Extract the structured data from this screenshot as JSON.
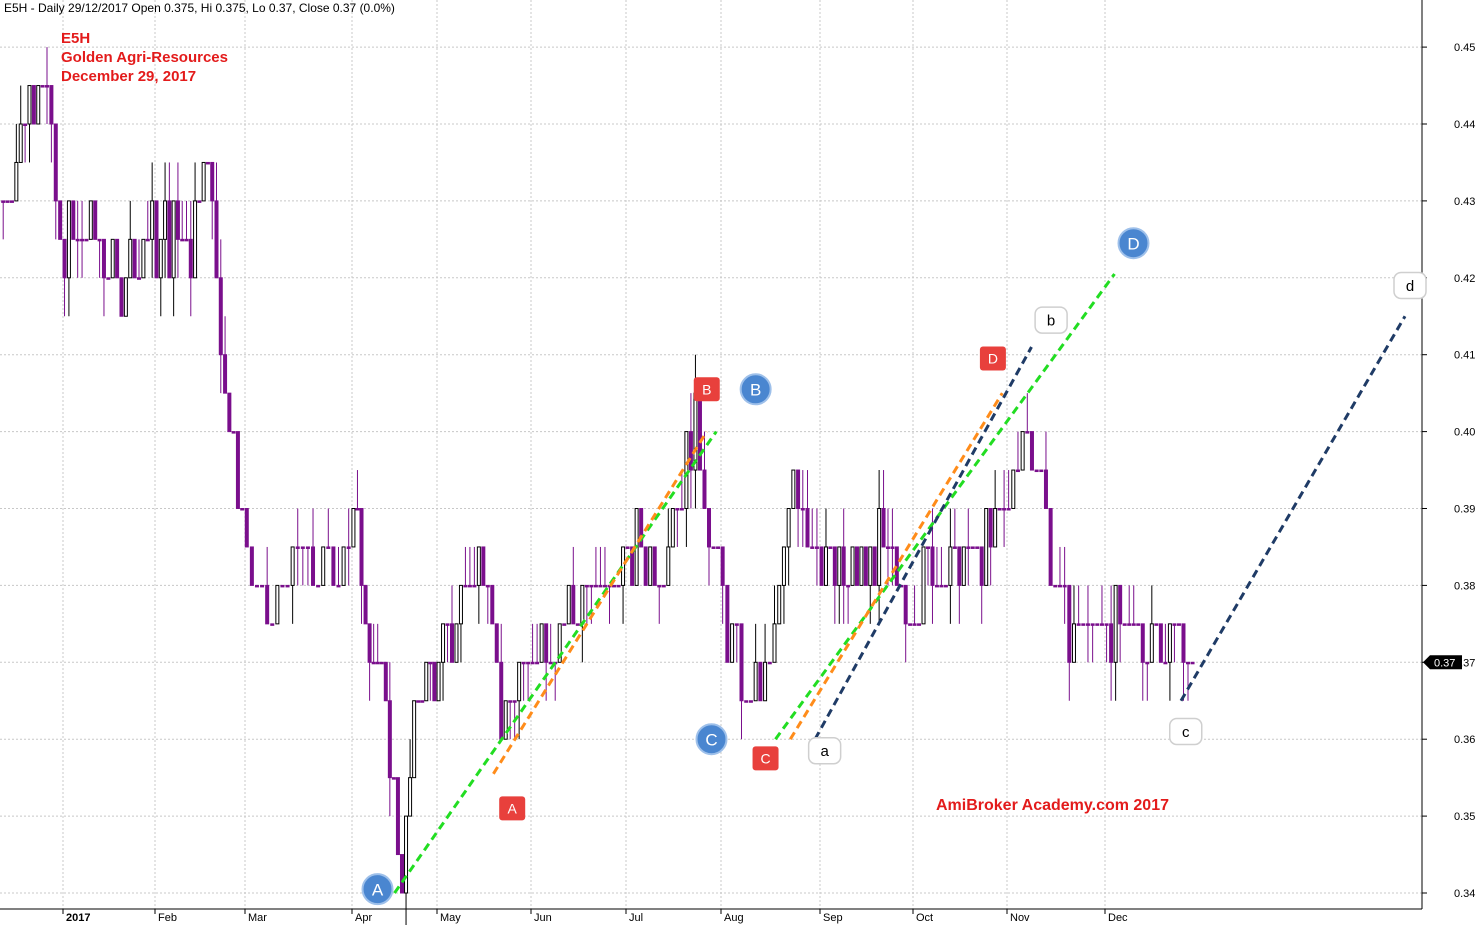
{
  "header": {
    "info": "E5H - Daily 29/12/2017 Open 0.375, Hi 0.375, Lo 0.37, Close 0.37 (0.0%)"
  },
  "title_block": {
    "symbol": "E5H",
    "company": "Golden Agri-Resources",
    "date": "December 29, 2017"
  },
  "watermark": "AmiBroker Academy.com  2017",
  "colors": {
    "down_bar": "#7a0f8c",
    "up_bar": "#000000",
    "grid": "#c8c8c8",
    "green_line": "#22dd22",
    "orange_line": "#ff8c1a",
    "navy_line": "#1f3b66",
    "red_marker": "#e8403c",
    "blue_marker": "#4a86d0",
    "text_red": "#e31b1b"
  },
  "chart_data": {
    "type": "candlestick",
    "title": "E5H",
    "y_tick_labels": [
      "0.34",
      "0.35",
      "0.36",
      "0.37",
      "0.38",
      "0.39",
      "0.40",
      "0.41",
      "0.42",
      "0.43",
      "0.44",
      "0.45"
    ],
    "x_tick_labels": [
      "2017",
      "Feb",
      "Mar",
      "Apr",
      "May",
      "Jun",
      "Jul",
      "Aug",
      "Sep",
      "Oct",
      "Nov",
      "Dec"
    ],
    "ylim": [
      0.3375,
      0.4575
    ],
    "grid": true,
    "last_price_label": "0.37",
    "last_price": 0.37,
    "month_index": [
      0,
      1,
      2,
      3,
      4,
      5,
      6,
      7,
      8,
      9,
      10,
      11,
      12,
      13,
      14
    ],
    "price_keyframes": [
      {
        "m": -0.65,
        "p": 0.43
      },
      {
        "m": -0.2,
        "p": 0.45
      },
      {
        "m": -0.05,
        "p": 0.425
      },
      {
        "m": 0.3,
        "p": 0.425
      },
      {
        "m": 0.6,
        "p": 0.42
      },
      {
        "m": 1.0,
        "p": 0.425
      },
      {
        "m": 1.4,
        "p": 0.425
      },
      {
        "m": 1.55,
        "p": 0.44
      },
      {
        "m": 1.68,
        "p": 0.42
      },
      {
        "m": 1.85,
        "p": 0.4
      },
      {
        "m": 2.0,
        "p": 0.385
      },
      {
        "m": 2.2,
        "p": 0.375
      },
      {
        "m": 2.5,
        "p": 0.385
      },
      {
        "m": 2.8,
        "p": 0.38
      },
      {
        "m": 3.0,
        "p": 0.39
      },
      {
        "m": 3.2,
        "p": 0.375
      },
      {
        "m": 3.45,
        "p": 0.36
      },
      {
        "m": 3.6,
        "p": 0.342
      },
      {
        "m": 3.75,
        "p": 0.365
      },
      {
        "m": 4.0,
        "p": 0.37
      },
      {
        "m": 4.2,
        "p": 0.375
      },
      {
        "m": 4.35,
        "p": 0.38
      },
      {
        "m": 4.55,
        "p": 0.385
      },
      {
        "m": 4.7,
        "p": 0.36
      },
      {
        "m": 4.95,
        "p": 0.37
      },
      {
        "m": 5.2,
        "p": 0.375
      },
      {
        "m": 5.5,
        "p": 0.378
      },
      {
        "m": 5.8,
        "p": 0.38
      },
      {
        "m": 6.1,
        "p": 0.385
      },
      {
        "m": 6.4,
        "p": 0.385
      },
      {
        "m": 6.6,
        "p": 0.395
      },
      {
        "m": 6.75,
        "p": 0.4
      },
      {
        "m": 6.9,
        "p": 0.385
      },
      {
        "m": 7.05,
        "p": 0.375
      },
      {
        "m": 7.25,
        "p": 0.365
      },
      {
        "m": 7.5,
        "p": 0.37
      },
      {
        "m": 7.75,
        "p": 0.395
      },
      {
        "m": 8.0,
        "p": 0.385
      },
      {
        "m": 8.3,
        "p": 0.38
      },
      {
        "m": 8.6,
        "p": 0.385
      },
      {
        "m": 8.9,
        "p": 0.378
      },
      {
        "m": 9.2,
        "p": 0.382
      },
      {
        "m": 9.5,
        "p": 0.383
      },
      {
        "m": 9.8,
        "p": 0.385
      },
      {
        "m": 10.0,
        "p": 0.39
      },
      {
        "m": 10.2,
        "p": 0.4
      },
      {
        "m": 10.35,
        "p": 0.395
      },
      {
        "m": 10.45,
        "p": 0.38
      },
      {
        "m": 10.7,
        "p": 0.375
      },
      {
        "m": 11.0,
        "p": 0.375
      },
      {
        "m": 11.3,
        "p": 0.372
      },
      {
        "m": 11.6,
        "p": 0.375
      },
      {
        "m": 11.8,
        "p": 0.372
      },
      {
        "m": 11.95,
        "p": 0.37
      }
    ],
    "trend_lines": [
      {
        "color": "green",
        "dash": "dashed",
        "from": {
          "m": 3.5,
          "p": 0.34
        },
        "to": {
          "m": 6.95,
          "p": 0.4
        }
      },
      {
        "color": "orange",
        "dash": "dashed",
        "from": {
          "m": 4.6,
          "p": 0.3555
        },
        "to": {
          "m": 6.85,
          "p": 0.4
        }
      },
      {
        "color": "green",
        "dash": "dashed",
        "from": {
          "m": 7.55,
          "p": 0.36
        },
        "to": {
          "m": 11.1,
          "p": 0.4205
        }
      },
      {
        "color": "orange",
        "dash": "dashed",
        "from": {
          "m": 7.7,
          "p": 0.36
        },
        "to": {
          "m": 9.95,
          "p": 0.405
        }
      },
      {
        "color": "navy",
        "dash": "dashed",
        "from": {
          "m": 7.95,
          "p": 0.36
        },
        "to": {
          "m": 10.25,
          "p": 0.411
        }
      },
      {
        "color": "navy",
        "dash": "dashed",
        "from": {
          "m": 11.8,
          "p": 0.365
        },
        "to": {
          "m": 14.05,
          "p": 0.415
        }
      }
    ],
    "markers": [
      {
        "label": "A",
        "style": "red",
        "m": 4.8,
        "p": 0.351
      },
      {
        "label": "A",
        "style": "blue",
        "m": 3.3,
        "p": 0.3405
      },
      {
        "label": "B",
        "style": "red",
        "m": 6.85,
        "p": 0.4055
      },
      {
        "label": "B",
        "style": "blue",
        "m": 7.35,
        "p": 0.4055
      },
      {
        "label": "C",
        "style": "red",
        "m": 7.45,
        "p": 0.3575
      },
      {
        "label": "C",
        "style": "blue",
        "m": 6.9,
        "p": 0.36
      },
      {
        "label": "D",
        "style": "red",
        "m": 9.85,
        "p": 0.4095
      },
      {
        "label": "D",
        "style": "blue",
        "m": 11.3,
        "p": 0.4245
      },
      {
        "label": "a",
        "style": "white",
        "m": 8.05,
        "p": 0.3585
      },
      {
        "label": "b",
        "style": "white",
        "m": 10.45,
        "p": 0.4145
      },
      {
        "label": "c",
        "style": "white",
        "m": 11.85,
        "p": 0.361
      },
      {
        "label": "d",
        "style": "white",
        "m": 14.1,
        "p": 0.419
      }
    ]
  }
}
